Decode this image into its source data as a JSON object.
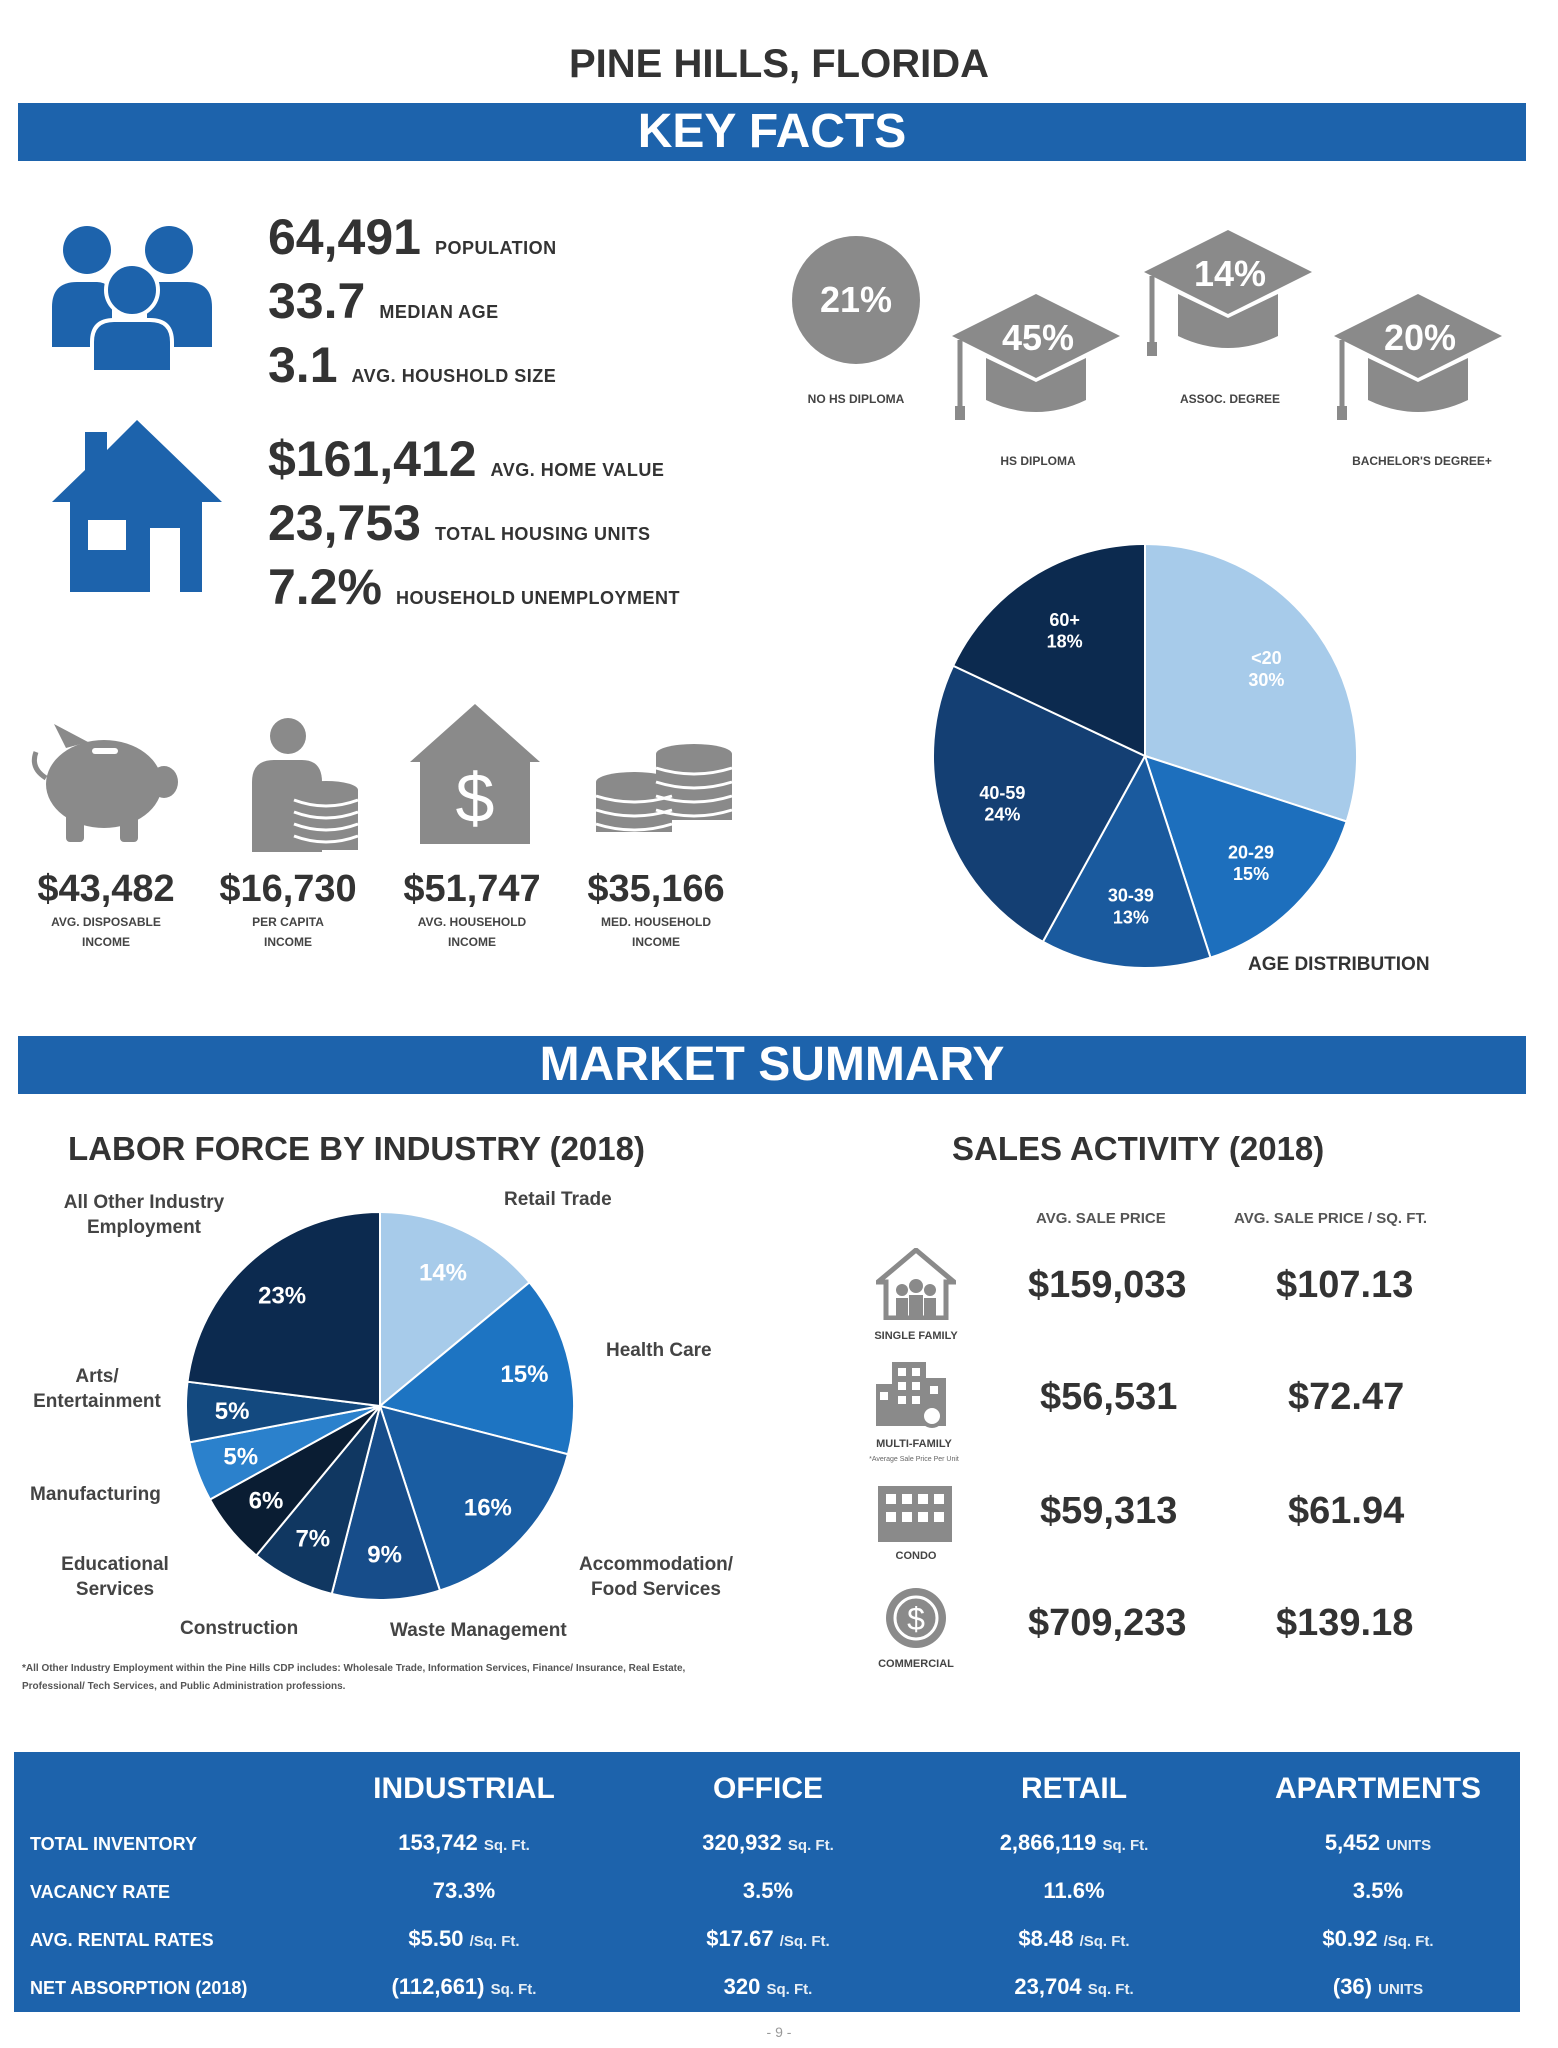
{
  "header": {
    "title": "PINE HILLS, FLORIDA",
    "key_facts": "KEY FACTS",
    "market_summary": "MARKET SUMMARY"
  },
  "key_facts": [
    {
      "value": "64,491",
      "label": "POPULATION"
    },
    {
      "value": "33.7",
      "label": "MEDIAN AGE"
    },
    {
      "value": "3.1",
      "label": "AVG. HOUSHOLD SIZE"
    },
    {
      "value": "$161,412",
      "label": "AVG. HOME VALUE"
    },
    {
      "value": "23,753",
      "label": "TOTAL HOUSING UNITS"
    },
    {
      "value": "7.2%",
      "label": "HOUSEHOLD UNEMPLOYMENT"
    }
  ],
  "education": [
    {
      "value": "21%",
      "label": "NO HS DIPLOMA"
    },
    {
      "value": "45%",
      "label": "HS DIPLOMA"
    },
    {
      "value": "14%",
      "label": "ASSOC. DEGREE"
    },
    {
      "value": "20%",
      "label": "BACHELOR'S DEGREE+"
    }
  ],
  "income": [
    {
      "value": "$43,482",
      "label1": "AVG. DISPOSABLE",
      "label2": "INCOME"
    },
    {
      "value": "$16,730",
      "label1": "PER CAPITA",
      "label2": "INCOME"
    },
    {
      "value": "$51,747",
      "label1": "AVG. HOUSEHOLD",
      "label2": "INCOME"
    },
    {
      "value": "$35,166",
      "label1": "MED. HOUSEHOLD",
      "label2": "INCOME"
    }
  ],
  "chart_data": [
    {
      "type": "pie",
      "title": "AGE DISTRIBUTION",
      "slices": [
        {
          "label": "<20",
          "value": 30,
          "pct": "30%",
          "color": "#a7cbea"
        },
        {
          "label": "20-29",
          "value": 15,
          "pct": "15%",
          "color": "#1d6fbd"
        },
        {
          "label": "30-39",
          "value": 13,
          "pct": "13%",
          "color": "#1a5a9e"
        },
        {
          "label": "40-59",
          "value": 24,
          "pct": "24%",
          "color": "#143f73"
        },
        {
          "label": "60+",
          "value": 18,
          "pct": "18%",
          "color": "#0c2a4f"
        }
      ]
    },
    {
      "type": "pie",
      "title": "LABOR FORCE BY INDUSTRY (2018)",
      "slices": [
        {
          "label": "Retail Trade",
          "value": 14,
          "pct": "14%",
          "color": "#a7cbea"
        },
        {
          "label": "Health Care",
          "value": 15,
          "pct": "15%",
          "color": "#1d74c2"
        },
        {
          "label": "Accommodation/ Food Services",
          "value": 16,
          "pct": "16%",
          "color": "#1a5da2"
        },
        {
          "label": "Waste Management",
          "value": 9,
          "pct": "9%",
          "color": "#174d8a"
        },
        {
          "label": "Construction",
          "value": 7,
          "pct": "7%",
          "color": "#103761"
        },
        {
          "label": "Educational Services",
          "value": 6,
          "pct": "6%",
          "color": "#0a1d33"
        },
        {
          "label": "Manufacturing",
          "value": 5,
          "pct": "5%",
          "color": "#2b81cc"
        },
        {
          "label": "Arts/ Entertainment",
          "value": 5,
          "pct": "5%",
          "color": "#13497f"
        },
        {
          "label": "All Other Industry Employment",
          "value": 23,
          "pct": "23%",
          "color": "#0c2a4f"
        }
      ]
    }
  ],
  "labor_labels": {
    "all_other_1": "All Other Industry",
    "all_other_2": "Employment",
    "retail": "Retail Trade",
    "health": "Health Care",
    "accom_1": "Accommodation/",
    "accom_2": "Food Services",
    "waste": "Waste Management",
    "construction": "Construction",
    "edu_1": "Educational",
    "edu_2": "Services",
    "manufacturing": "Manufacturing",
    "arts_1": "Arts/",
    "arts_2": "Entertainment"
  },
  "labor_footnote": "*All Other Industry Employment within the Pine Hills CDP includes: Wholesale Trade, Information Services, Finance/ Insurance, Real Estate, Professional/ Tech Services, and Public Administration professions.",
  "sales": {
    "title": "SALES ACTIVITY (2018)",
    "col1": "AVG. SALE PRICE",
    "col2": "AVG. SALE PRICE / SQ. FT.",
    "rows": [
      {
        "label": "SINGLE FAMILY",
        "price": "$159,033",
        "psf": "$107.13"
      },
      {
        "label": "MULTI-FAMILY",
        "price": "$56,531",
        "psf": "$72.47",
        "note": "*Average Sale Price Per Unit"
      },
      {
        "label": "CONDO",
        "price": "$59,313",
        "psf": "$61.94"
      },
      {
        "label": "COMMERCIAL",
        "price": "$709,233",
        "psf": "$139.18"
      }
    ]
  },
  "market_table": {
    "headers": [
      "INDUSTRIAL",
      "OFFICE",
      "RETAIL",
      "APARTMENTS"
    ],
    "rows": [
      {
        "label": "TOTAL INVENTORY",
        "cells": [
          {
            "v": "153,742",
            "u": "Sq. Ft."
          },
          {
            "v": "320,932",
            "u": "Sq. Ft."
          },
          {
            "v": "2,866,119",
            "u": "Sq. Ft."
          },
          {
            "v": "5,452",
            "u": "UNITS"
          }
        ]
      },
      {
        "label": "VACANCY RATE",
        "cells": [
          {
            "v": "73.3%",
            "u": ""
          },
          {
            "v": "3.5%",
            "u": ""
          },
          {
            "v": "11.6%",
            "u": ""
          },
          {
            "v": "3.5%",
            "u": ""
          }
        ]
      },
      {
        "label": "AVG. RENTAL RATES",
        "cells": [
          {
            "v": "$5.50",
            "u": "/Sq. Ft."
          },
          {
            "v": "$17.67",
            "u": "/Sq. Ft."
          },
          {
            "v": "$8.48",
            "u": "/Sq. Ft."
          },
          {
            "v": "$0.92",
            "u": "/Sq. Ft."
          }
        ]
      },
      {
        "label": "NET ABSORPTION (2018)",
        "cells": [
          {
            "v": "(112,661)",
            "u": "Sq. Ft."
          },
          {
            "v": "320",
            "u": "Sq. Ft."
          },
          {
            "v": "23,704",
            "u": "Sq. Ft."
          },
          {
            "v": "(36)",
            "u": "UNITS"
          }
        ]
      }
    ]
  },
  "page_number": "- 9 -"
}
